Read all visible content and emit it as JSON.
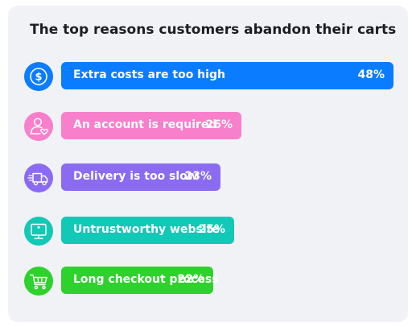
{
  "chart_data": {
    "type": "bar",
    "orientation": "horizontal",
    "title": "The top reasons customers abandon their carts",
    "categories": [
      "Extra costs are too high",
      "An account is required",
      "Delivery is too slow",
      "Untrustworthy website",
      "Long checkout process"
    ],
    "values": [
      48,
      26,
      23,
      25,
      22
    ],
    "value_labels": [
      "48%",
      "26%",
      "23%",
      "25%",
      "22%"
    ],
    "value_unit": "%",
    "colors": [
      "#0a7cff",
      "#f77fcb",
      "#8b6bf2",
      "#12c8b6",
      "#2fd12c"
    ],
    "icons": [
      "dollar-icon",
      "user-heart-icon",
      "delivery-truck-icon",
      "monitor-icon",
      "shopping-cart-icon"
    ],
    "grid": false,
    "legend": "none"
  }
}
